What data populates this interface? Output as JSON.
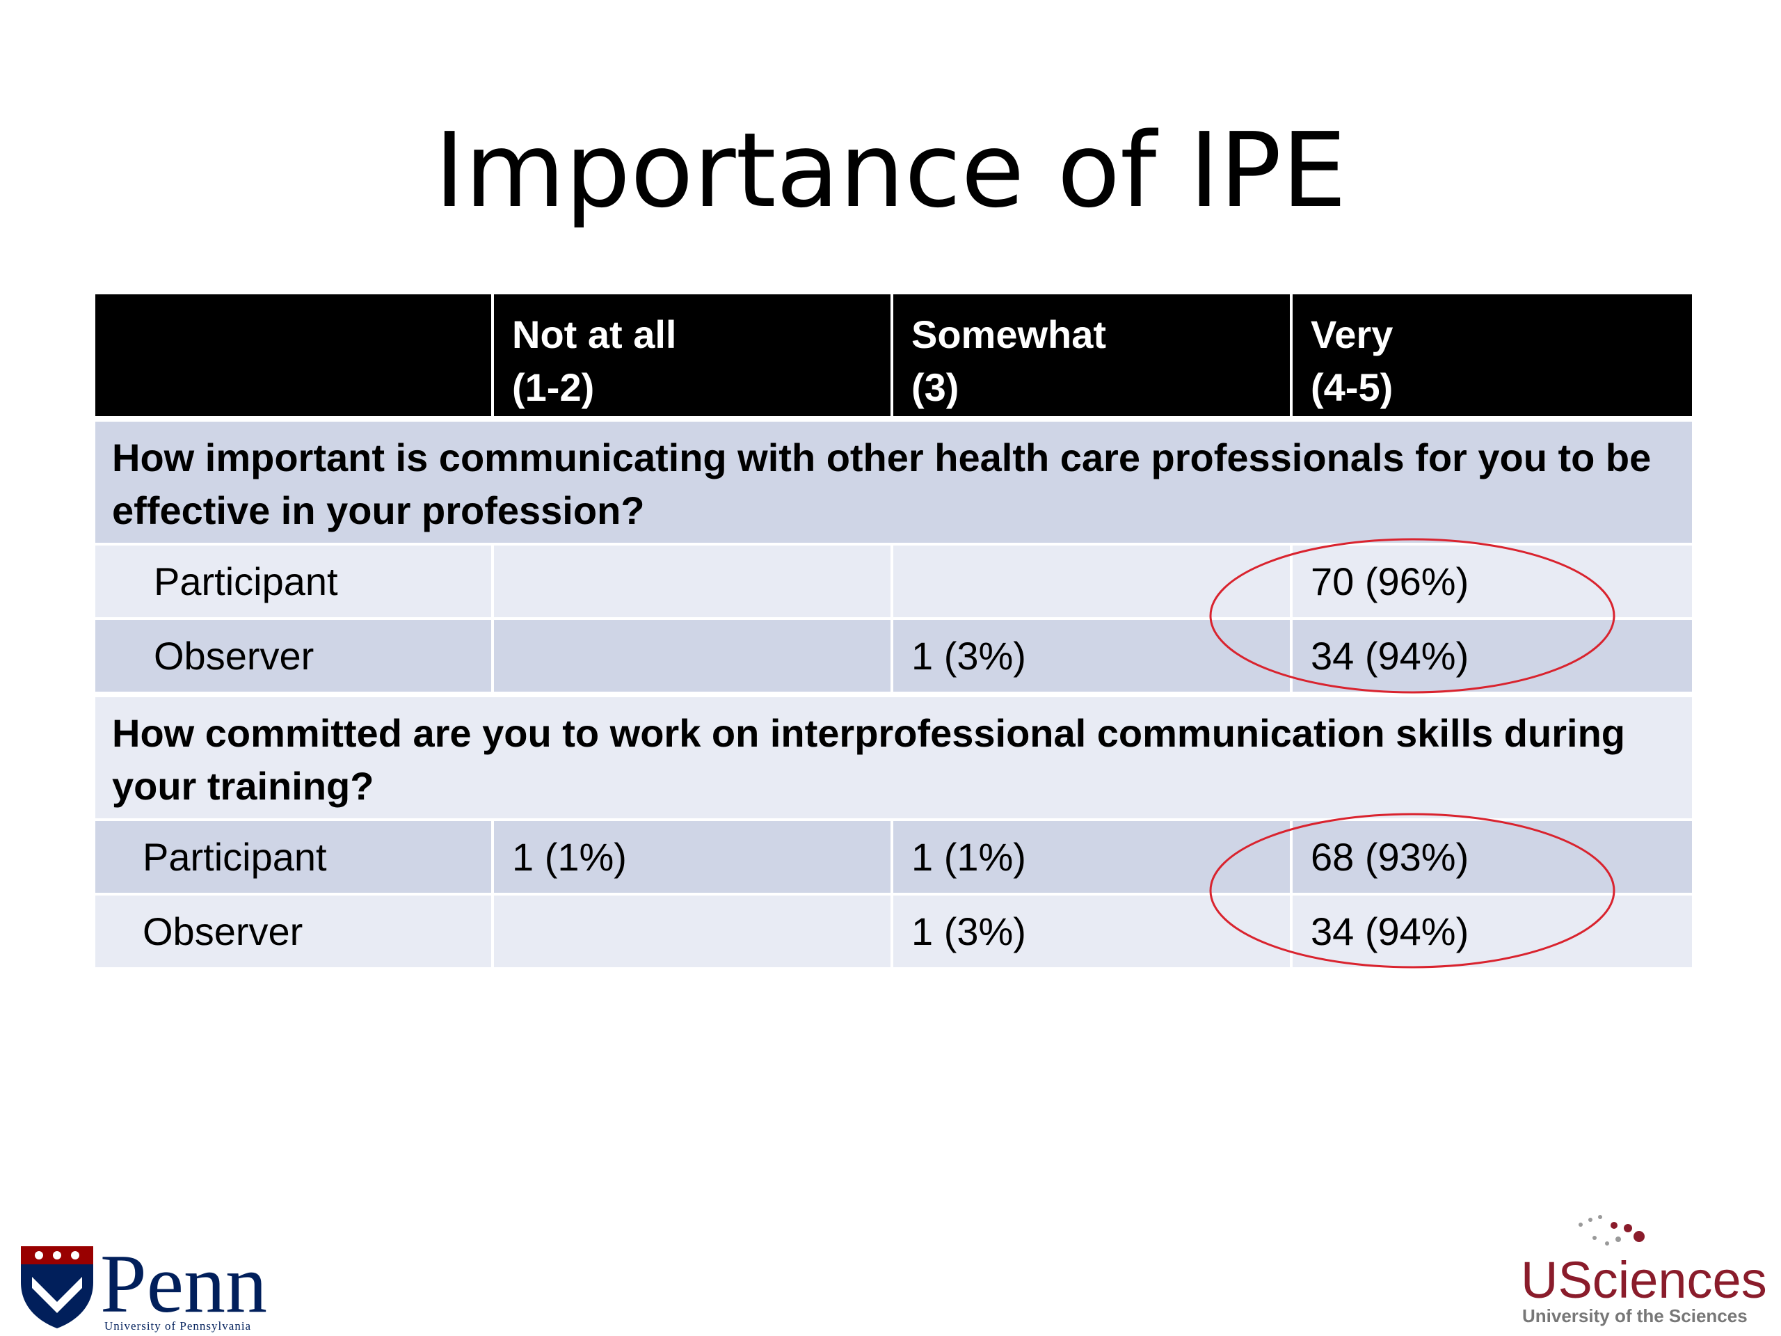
{
  "title": "Importance of IPE",
  "table": {
    "columns": [
      {
        "line1": "",
        "line2": ""
      },
      {
        "line1": "Not at all",
        "line2": "(1-2)"
      },
      {
        "line1": "Somewhat",
        "line2": "(3)"
      },
      {
        "line1": "Very",
        "line2": "(4-5)"
      }
    ],
    "sections": [
      {
        "question": "How important is communicating with other health care professionals for you to be effective in your profession?",
        "rows": [
          {
            "label": "Participant",
            "cells": [
              "",
              "",
              "70 (96%)"
            ]
          },
          {
            "label": "Observer",
            "cells": [
              "",
              "1 (3%)",
              "34 (94%)"
            ]
          }
        ]
      },
      {
        "question": "How committed are you to work on interprofessional communication skills during your training?",
        "rows": [
          {
            "label": "Participant",
            "cells": [
              "1 (1%)",
              "1 (1%)",
              "68 (93%)"
            ]
          },
          {
            "label": "Observer",
            "cells": [
              "",
              "1 (3%)",
              "34 (94%)"
            ]
          }
        ]
      }
    ]
  },
  "annotation_color": "#d9232e",
  "logos": {
    "penn": {
      "name": "Penn",
      "subtitle": "University of Pennsylvania"
    },
    "usciences": {
      "name": "USciences",
      "subtitle": "University of the Sciences"
    }
  },
  "colors": {
    "header_bg": "#000000",
    "row_dark": "#cfd5e6",
    "row_light": "#e8ebf4",
    "penn_blue": "#011F5B",
    "penn_red": "#990000",
    "usciences_red": "#8a1c2b"
  }
}
